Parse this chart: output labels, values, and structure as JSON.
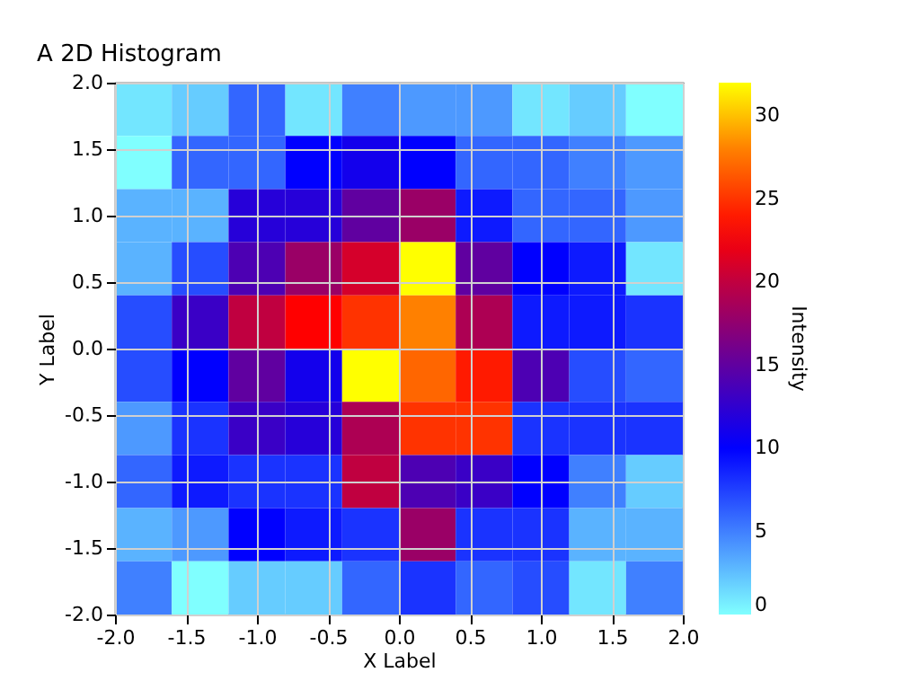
{
  "chart_data": {
    "type": "heatmap",
    "title": "A 2D Histogram",
    "xlabel": "X Label",
    "ylabel": "Y Label",
    "clabel": "Intensity",
    "xlim": [
      -2,
      2
    ],
    "ylim": [
      -2,
      2
    ],
    "xticks": [
      {
        "value": -2,
        "label": "-2.0"
      },
      {
        "value": -1.5,
        "label": "-1.5"
      },
      {
        "value": -1,
        "label": "-1.0"
      },
      {
        "value": -0.5,
        "label": "-0.5"
      },
      {
        "value": 0,
        "label": "0.0"
      },
      {
        "value": 0.5,
        "label": "0.5"
      },
      {
        "value": 1,
        "label": "1.0"
      },
      {
        "value": 1.5,
        "label": "1.5"
      },
      {
        "value": 2,
        "label": "2.0"
      }
    ],
    "yticks": [
      {
        "value": -2,
        "label": "-2.0"
      },
      {
        "value": -1.5,
        "label": "-1.5"
      },
      {
        "value": -1,
        "label": "-1.0"
      },
      {
        "value": -0.5,
        "label": "-0.5"
      },
      {
        "value": 0,
        "label": "0.0"
      },
      {
        "value": 0.5,
        "label": "0.5"
      },
      {
        "value": 1,
        "label": "1.0"
      },
      {
        "value": 1.5,
        "label": "1.5"
      },
      {
        "value": 2,
        "label": "2.0"
      }
    ],
    "clim": [
      0,
      32
    ],
    "cticks": [
      0,
      5,
      10,
      15,
      20,
      25,
      30
    ],
    "grid": true,
    "cells": [
      [
        1,
        2,
        6,
        1,
        5,
        4,
        4,
        1,
        2,
        0
      ],
      [
        0,
        6,
        6,
        10,
        11,
        10,
        6,
        6,
        5,
        4
      ],
      [
        3,
        3,
        12,
        12,
        15,
        18,
        9,
        6,
        6,
        4
      ],
      [
        3,
        7,
        14,
        18,
        21,
        32,
        15,
        10,
        9,
        1
      ],
      [
        7,
        13,
        20,
        23,
        25,
        28,
        19,
        9,
        9,
        8
      ],
      [
        7,
        10,
        15,
        11,
        32,
        27,
        24,
        14,
        7,
        6
      ],
      [
        4,
        8,
        13,
        12,
        19,
        25,
        25,
        8,
        8,
        8
      ],
      [
        6,
        9,
        8,
        8,
        20,
        14,
        13,
        10,
        5,
        2
      ],
      [
        3,
        4,
        10,
        9,
        8,
        18,
        8,
        8,
        3,
        3
      ],
      [
        5,
        0,
        2,
        2,
        6,
        8,
        6,
        7,
        1,
        5
      ]
    ]
  }
}
